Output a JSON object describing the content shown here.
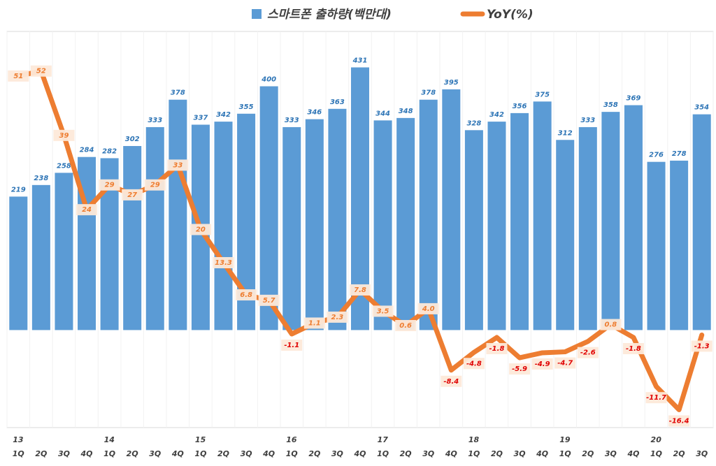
{
  "chart_data": {
    "type": "bar_line",
    "categories": [
      "1Q",
      "2Q",
      "3Q",
      "4Q",
      "1Q",
      "2Q",
      "3Q",
      "4Q",
      "1Q",
      "2Q",
      "3Q",
      "4Q",
      "1Q",
      "2Q",
      "3Q",
      "4Q",
      "1Q",
      "2Q",
      "3Q",
      "4Q",
      "1Q",
      "2Q",
      "3Q",
      "4Q",
      "1Q",
      "2Q",
      "3Q",
      "4Q",
      "1Q",
      "2Q",
      "3Q"
    ],
    "year_labels": [
      "13",
      null,
      null,
      null,
      "14",
      null,
      null,
      null,
      "15",
      null,
      null,
      null,
      "16",
      null,
      null,
      null,
      "17",
      null,
      null,
      null,
      "18",
      null,
      null,
      null,
      "19",
      null,
      null,
      null,
      "20",
      null,
      null
    ],
    "series": [
      {
        "name": "스마트폰 출하량(백만대)",
        "type": "bar",
        "color": "#5b9bd5",
        "values": [
          219,
          238,
          258,
          284,
          282,
          302,
          333,
          378,
          337,
          342,
          355,
          400,
          333,
          346,
          363,
          431,
          344,
          348,
          378,
          395,
          328,
          342,
          356,
          375,
          312,
          333,
          358,
          369,
          276,
          278,
          354
        ]
      },
      {
        "name": "YoY(%)",
        "type": "line",
        "axis": "y2",
        "color": "#ed7d31",
        "values": [
          51,
          52,
          39,
          24,
          29,
          27,
          29,
          33,
          20,
          13.3,
          6.8,
          5.7,
          -1.1,
          1.1,
          2.3,
          7.8,
          3.5,
          0.6,
          4.0,
          -8.4,
          -4.8,
          -1.8,
          -5.9,
          -4.9,
          -4.7,
          -2.6,
          0.8,
          -1.8,
          -11.7,
          -16.4,
          -1.3
        ],
        "value_labels": [
          "51",
          "52",
          "39",
          "24",
          "29",
          "27",
          "29",
          "33",
          "20",
          "13.3",
          "6.8",
          "5.7",
          "-1.1",
          "1.1",
          "2.3",
          "7.8",
          "3.5",
          "0.6",
          "4.0",
          "-8.4",
          "-4.8",
          "-1.8",
          "-5.9",
          "-4.9",
          "-4.7",
          "-2.6",
          "0.8",
          "-1.8",
          "-11.7",
          "-16.4",
          "-1.3"
        ]
      }
    ],
    "ylim": [
      -160,
      490
    ],
    "y2lim": [
      -20,
      60
    ],
    "legend": "top"
  }
}
